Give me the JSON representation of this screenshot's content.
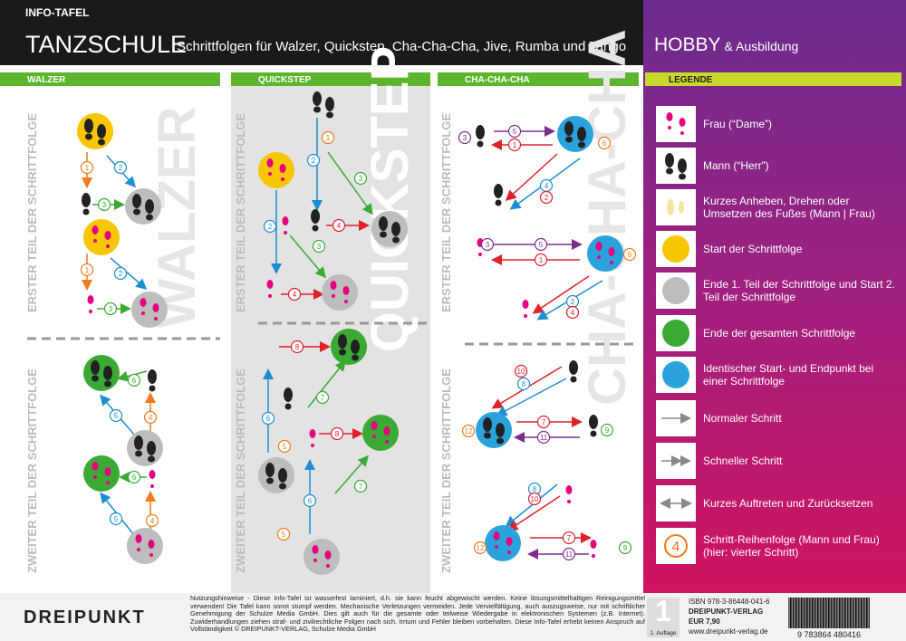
{
  "header": {
    "kicker": "INFO-TAFEL",
    "title": "TANZSCHULE",
    "subtitle": "Schrittfolgen für Walzer, Quickstep, Cha-Cha-Cha, Jive, Rumba und Tango",
    "brand": "HOBBY",
    "brand_suffix": "& Ausbildung"
  },
  "sections": [
    {
      "label": "WALZER",
      "part1": "ERSTER TEIL DER SCHRITTFOLGE",
      "part2": "ZWEITER TEIL DER SCHRITTFOLGE",
      "watermark": "WALZER",
      "steps": [
        "1",
        "2",
        "3",
        "1",
        "2",
        "3",
        "6",
        "4",
        "5",
        "6",
        "4",
        "5"
      ]
    },
    {
      "label": "QUICKSTEP",
      "part1": "ERSTER TEIL DER SCHRITTFOLGE",
      "part2": "ZWEITER TEIL DER SCHRITTFOLGE",
      "watermark": "QUICKSTEP",
      "steps": [
        "1",
        "2",
        "3",
        "2",
        "4",
        "3",
        "4",
        "8",
        "6",
        "7",
        "5",
        "8",
        "6",
        "7",
        "5"
      ]
    },
    {
      "label": "CHA-CHA-CHA",
      "part1": "ERSTER TEIL DER SCHRITTFOLGE",
      "part2": "ZWEITER TEIL DER SCHRITTFOLGE",
      "watermark": "CHA-CHA-CHA",
      "steps": [
        "3",
        "5",
        "1",
        "6",
        "4",
        "2",
        "3",
        "5",
        "1",
        "6",
        "2",
        "4",
        "10",
        "8",
        "12",
        "7",
        "11",
        "9",
        "8",
        "10",
        "12",
        "7",
        "11",
        "9"
      ]
    }
  ],
  "legend": {
    "title": "LEGENDE",
    "items": [
      {
        "text": "Frau (“Dame”)"
      },
      {
        "text": "Mann (“Herr”)"
      },
      {
        "text": "Kurzes Anheben, Drehen oder Umsetzen des Fußes (Mann | Frau)"
      },
      {
        "text": "Start der Schrittfolge"
      },
      {
        "text": "Ende 1. Teil der Schrittfolge und Start 2. Teil der Schrittfolge"
      },
      {
        "text": "Ende der gesamten Schrittfolge"
      },
      {
        "text": "Identischer Start- und Endpunkt bei einer Schrittfolge"
      },
      {
        "text": "Normaler Schritt"
      },
      {
        "text": "Schneller Schritt"
      },
      {
        "text": "Kurzes Auftreten und Zurücksetzen"
      },
      {
        "text": "Schritt-Reihenfolge (Mann und Frau) (hier: vierter Schritt)",
        "icon_label": "4"
      }
    ]
  },
  "footer": {
    "logo": "DREIPUNKT",
    "notice": "Nutzungshinweise - Diese Info-Tafel ist wasserfest laminiert, d.h. sie kann feucht abgewischt werden. Keine lösungsmittelhaltigen Reinigungsmittel verwenden! Die Tafel kann sonst stumpf werden. Mechanische Verletzungen vermeiden. Jede Vervielfältigung, auch auszugsweise, nur mit schriftlicher Genehmigung der Schulze Media GmbH. Dies gilt auch für die gesamte oder teilweise Wiedergabe in elektronischen Systemen (z.B. Internet). Zuwiderhandlungen ziehen straf- und zivilrechtliche Folgen nach sich. Irrtum und Fehler bleiben vorbehalten. Diese Info-Tafel erhebt keinen Anspruch auf Vollständigkeit © DREIPUNKT-VERLAG, Schulze Media GmbH",
    "edition_number": "1",
    "edition": "1. Auflage",
    "isbn": "ISBN  978-3-86448-041-6",
    "publisher": "DREIPUNKT-VERLAG",
    "price": "EUR 7,90",
    "website": "www.dreipunkt-verlag.de",
    "barcode": "9 783864 480416"
  }
}
